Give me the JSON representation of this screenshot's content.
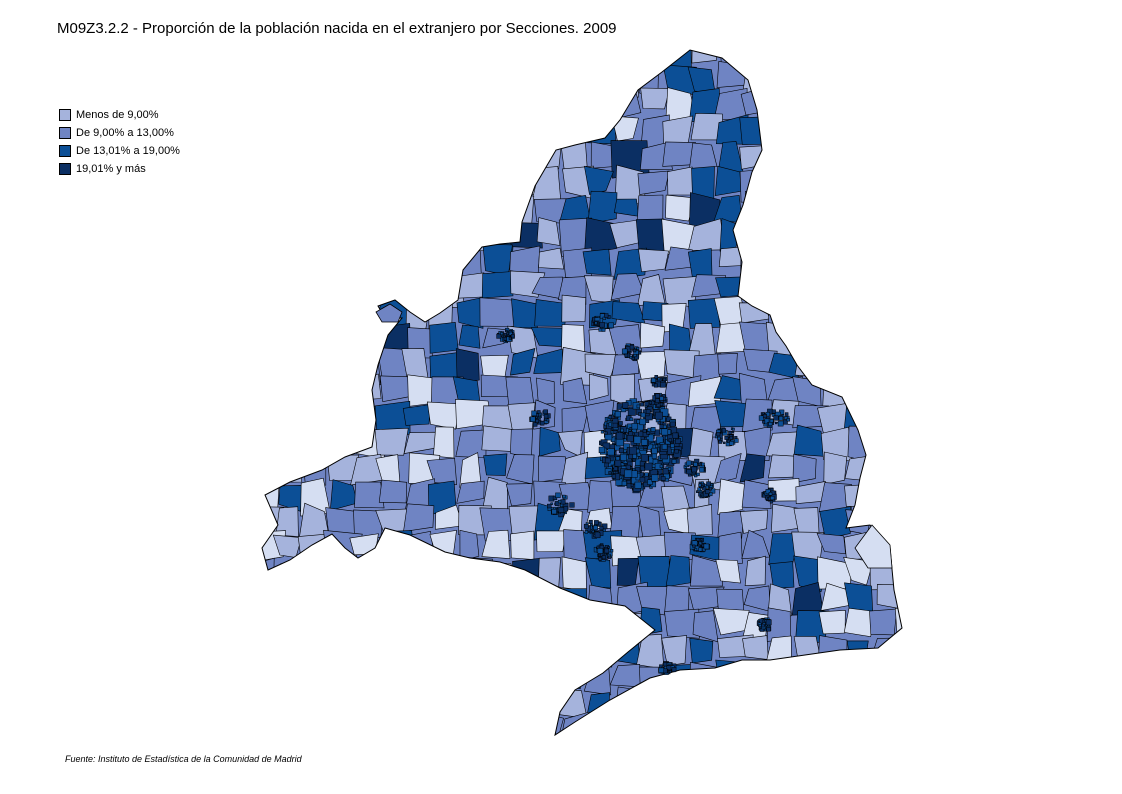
{
  "title": "M09Z3.2.2 - Proporción de la población nacida en el extranjero por Secciones. 2009",
  "legend": [
    {
      "label": "Menos de 9,00%",
      "color": "#a5b3dc"
    },
    {
      "label": "De 9,00% a 13,00%",
      "color": "#6f84c3"
    },
    {
      "label": "De 13,01%  a 19,00%",
      "color": "#0c4f96"
    },
    {
      "label": "19,01%  y más",
      "color": "#0b2f63"
    }
  ],
  "map": {
    "region": "Comunidad de Madrid",
    "class_colors": [
      "#d5def2",
      "#a5b3dc",
      "#6f84c3",
      "#0c4f96",
      "#0b2f63"
    ]
  },
  "source": "Fuente: Instituto de Estadística de la Comunidad de Madrid"
}
